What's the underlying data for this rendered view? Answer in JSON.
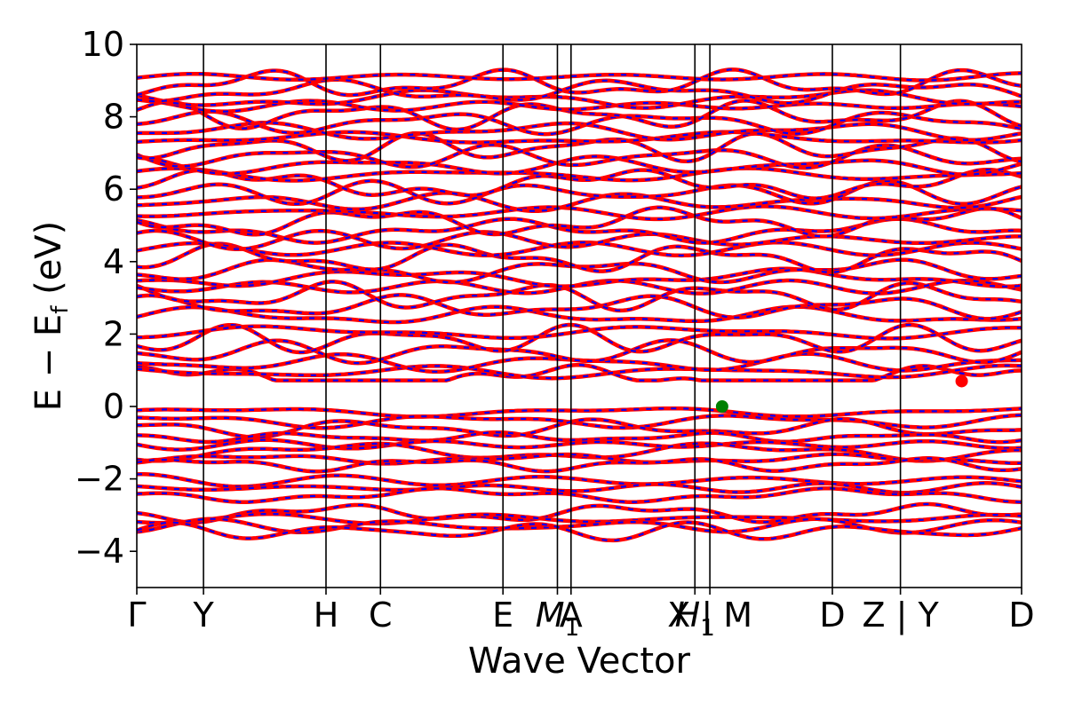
{
  "chart_data": {
    "type": "line",
    "xlabel": "Wave Vector",
    "ylabel": "E − E",
    "ylabel_sub": "f",
    "ylabel_unit": " (eV)",
    "ylim": [
      -5,
      10
    ],
    "yticks": [
      {
        "value": 10,
        "label": "10"
      },
      {
        "value": 8,
        "label": "8"
      },
      {
        "value": 6,
        "label": "6"
      },
      {
        "value": 4,
        "label": "4"
      },
      {
        "value": 2,
        "label": "2"
      },
      {
        "value": 0,
        "label": "0"
      },
      {
        "value": -2,
        "label": "−2"
      },
      {
        "value": -4,
        "label": "−4"
      }
    ],
    "xlim": [
      0,
      13
    ],
    "kpoints": [
      {
        "x": 0.0,
        "label": "Γ"
      },
      {
        "x": 0.98,
        "label": "Y"
      },
      {
        "x": 2.78,
        "label": "H"
      },
      {
        "x": 3.58,
        "label": "C"
      },
      {
        "x": 5.38,
        "label": "E"
      },
      {
        "x": 6.18,
        "label": "M",
        "sub": "1",
        "italic": true
      },
      {
        "x": 6.38,
        "label": "A"
      },
      {
        "x": 8.2,
        "label": "H",
        "sub": "1",
        "italic": true
      },
      {
        "x": 8.42,
        "label": "X | M"
      },
      {
        "x": 10.22,
        "label": "D"
      },
      {
        "x": 11.22,
        "label": "Z | Y"
      },
      {
        "x": 13.0,
        "label": "D"
      }
    ],
    "grid": false,
    "line_colors": {
      "spin_up": "#ff0000",
      "spin_down": "#0000ff"
    },
    "vbm": {
      "x": 8.6,
      "y": 0.0,
      "color": "#008000"
    },
    "cbm": {
      "x": 12.12,
      "y": 0.7,
      "color": "#ff0000"
    },
    "valence_bands": [
      -0.15,
      -0.4,
      -0.6,
      -0.85,
      -1.05,
      -1.25,
      -1.45,
      -1.6,
      -2.05,
      -2.25,
      -2.45,
      -2.95,
      -3.1,
      -3.3,
      -3.45
    ],
    "conduction_bands": [
      0.75,
      0.95,
      1.2,
      1.5,
      1.85,
      2.05,
      2.5,
      2.75,
      3.05,
      3.3,
      3.55,
      3.75,
      4.1,
      4.35,
      4.6,
      4.85,
      5.1,
      5.35,
      5.65,
      5.9,
      6.15,
      6.4,
      6.65,
      6.9,
      7.15,
      7.4,
      7.6,
      7.85,
      8.05,
      8.3,
      8.5,
      8.7,
      8.9,
      9.1
    ]
  }
}
